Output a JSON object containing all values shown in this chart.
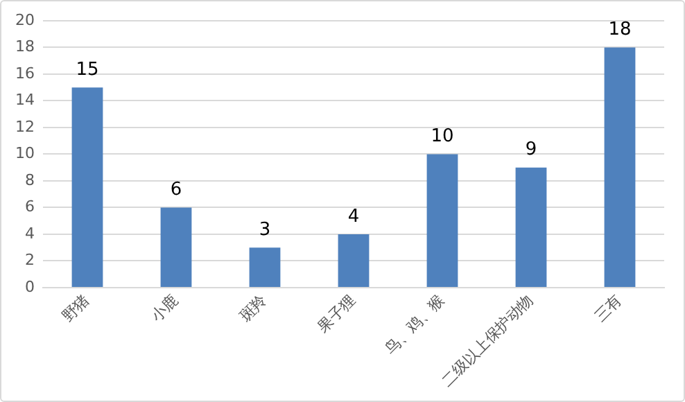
{
  "chart_data": {
    "type": "bar",
    "categories": [
      "野猪",
      "小鹿",
      "斑羚",
      "果子狸",
      "鸟、鸡、猴",
      "二级以上保护动物",
      "三有"
    ],
    "values": [
      15,
      6,
      3,
      4,
      10,
      9,
      18
    ],
    "color": "#4f81bd",
    "ylim": [
      0,
      20
    ],
    "yticks": [
      0,
      2,
      4,
      6,
      8,
      10,
      12,
      14,
      16,
      18,
      20
    ],
    "grid": "y",
    "data_labels": true,
    "legend": false
  }
}
